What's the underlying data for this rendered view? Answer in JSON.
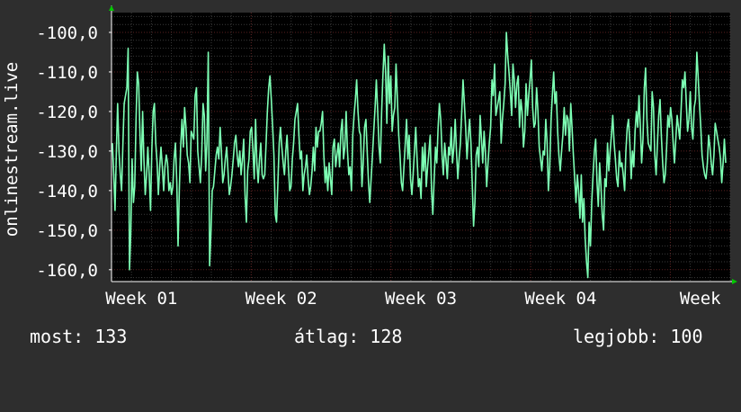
{
  "chart_data": {
    "type": "line",
    "ylabel": "onlinestream.live",
    "xlabel": "",
    "title": "",
    "ylim": [
      -163,
      -95
    ],
    "yticks": [
      -100,
      -110,
      -120,
      -130,
      -140,
      -150,
      -160
    ],
    "ytick_labels": [
      "-100,0",
      "-110,0",
      "-120,0",
      "-130,0",
      "-140,0",
      "-150,0",
      "-160,0"
    ],
    "xticks": [
      {
        "label": "Week 01",
        "x": 1.5
      },
      {
        "label": "Week 02",
        "x": 8.5
      },
      {
        "label": "Week 03",
        "x": 15.5
      },
      {
        "label": "Week 04",
        "x": 22.5
      },
      {
        "label": "Week",
        "x": 29.5
      }
    ],
    "xlim": [
      0,
      31
    ],
    "grid": true,
    "colors": {
      "background": "#2e2e2e",
      "plot": "#000000",
      "line": "#7dffb4",
      "grid_major": "#5a2020",
      "grid_minor": "#3a3a3a",
      "axis": "#ffffff",
      "arrow": "#00c800"
    },
    "series": [
      {
        "values": [
          -128,
          -136,
          -145,
          -130,
          -118,
          -130,
          -136,
          -140,
          -128,
          -118,
          -116,
          -114,
          -104,
          -160,
          -151,
          -132,
          -143,
          -139,
          -122,
          -110,
          -113,
          -126,
          -135,
          -120,
          -132,
          -141,
          -136,
          -129,
          -136,
          -145,
          -130,
          -120,
          -118,
          -128,
          -133,
          -141,
          -134,
          -129,
          -134,
          -140,
          -134,
          -131,
          -133,
          -140,
          -138,
          -141,
          -139,
          -132,
          -128,
          -138,
          -154,
          -139,
          -129,
          -122,
          -129,
          -119,
          -124,
          -131,
          -133,
          -138,
          -125,
          -126,
          -127,
          -116,
          -114,
          -130,
          -134,
          -138,
          -131,
          -118,
          -121,
          -135,
          -128,
          -105,
          -159,
          -151,
          -140,
          -139,
          -135,
          -131,
          -129,
          -132,
          -124,
          -130,
          -138,
          -136,
          -132,
          -129,
          -135,
          -141,
          -139,
          -136,
          -132,
          -128,
          -126,
          -131,
          -134,
          -130,
          -136,
          -132,
          -127,
          -141,
          -148,
          -135,
          -132,
          -125,
          -124,
          -130,
          -137,
          -122,
          -133,
          -138,
          -132,
          -128,
          -136,
          -137,
          -136,
          -128,
          -120,
          -114,
          -111,
          -117,
          -124,
          -131,
          -146,
          -148,
          -138,
          -128,
          -124,
          -129,
          -133,
          -136,
          -130,
          -126,
          -134,
          -140,
          -139,
          -132,
          -128,
          -122,
          -120,
          -118,
          -126,
          -132,
          -130,
          -140,
          -136,
          -134,
          -131,
          -137,
          -141,
          -139,
          -135,
          -129,
          -135,
          -124,
          -129,
          -125,
          -125,
          -123,
          -120,
          -131,
          -138,
          -134,
          -140,
          -133,
          -137,
          -141,
          -129,
          -127,
          -134,
          -131,
          -128,
          -134,
          -125,
          -122,
          -132,
          -129,
          -120,
          -130,
          -136,
          -134,
          -140,
          -126,
          -121,
          -117,
          -112,
          -120,
          -125,
          -126,
          -139,
          -133,
          -124,
          -122,
          -130,
          -138,
          -143,
          -137,
          -131,
          -125,
          -119,
          -112,
          -120,
          -129,
          -133,
          -120,
          -111,
          -103,
          -110,
          -123,
          -106,
          -118,
          -111,
          -125,
          -121,
          -119,
          -108,
          -117,
          -126,
          -131,
          -138,
          -140,
          -134,
          -128,
          -122,
          -132,
          -126,
          -137,
          -141,
          -136,
          -130,
          -124,
          -132,
          -139,
          -137,
          -142,
          -129,
          -135,
          -128,
          -139,
          -134,
          -130,
          -126,
          -140,
          -146,
          -137,
          -129,
          -133,
          -124,
          -118,
          -122,
          -131,
          -136,
          -128,
          -132,
          -137,
          -129,
          -131,
          -124,
          -133,
          -129,
          -122,
          -130,
          -137,
          -132,
          -128,
          -120,
          -112,
          -118,
          -124,
          -132,
          -126,
          -122,
          -128,
          -138,
          -149,
          -143,
          -131,
          -129,
          -134,
          -121,
          -127,
          -133,
          -125,
          -130,
          -139,
          -133,
          -128,
          -124,
          -112,
          -116,
          -108,
          -121,
          -119,
          -117,
          -115,
          -128,
          -122,
          -118,
          -113,
          -100,
          -106,
          -110,
          -115,
          -121,
          -108,
          -112,
          -119,
          -113,
          -111,
          -124,
          -117,
          -120,
          -129,
          -125,
          -113,
          -121,
          -116,
          -112,
          -107,
          -119,
          -124,
          -123,
          -114,
          -120,
          -129,
          -132,
          -135,
          -130,
          -131,
          -122,
          -128,
          -140,
          -134,
          -122,
          -116,
          -110,
          -118,
          -115,
          -125,
          -131,
          -135,
          -130,
          -126,
          -119,
          -126,
          -121,
          -122,
          -130,
          -118,
          -124,
          -131,
          -137,
          -143,
          -136,
          -140,
          -147,
          -136,
          -148,
          -142,
          -152,
          -158,
          -162,
          -148,
          -154,
          -143,
          -136,
          -130,
          -127,
          -138,
          -144,
          -133,
          -139,
          -146,
          -150,
          -137,
          -139,
          -128,
          -135,
          -130,
          -126,
          -121,
          -128,
          -132,
          -137,
          -139,
          -130,
          -134,
          -133,
          -136,
          -140,
          -130,
          -124,
          -122,
          -128,
          -137,
          -130,
          -134,
          -125,
          -120,
          -124,
          -116,
          -124,
          -133,
          -127,
          -114,
          -109,
          -122,
          -128,
          -129,
          -130,
          -115,
          -119,
          -131,
          -136,
          -128,
          -121,
          -117,
          -126,
          -133,
          -138,
          -136,
          -129,
          -121,
          -124,
          -119,
          -122,
          -128,
          -133,
          -127,
          -121,
          -124,
          -127,
          -120,
          -112,
          -114,
          -110,
          -118,
          -125,
          -122,
          -115,
          -124,
          -127,
          -119,
          -117,
          -105,
          -111,
          -118,
          -124,
          -131,
          -134,
          -136,
          -137,
          -133,
          -126,
          -129,
          -133,
          -136,
          -131,
          -123,
          -125,
          -127,
          -129,
          -132,
          -138,
          -133,
          -127,
          -133
        ]
      }
    ]
  },
  "stats": {
    "now": "most: 133",
    "average": "átlag: 128",
    "best": "legjobb: 100"
  }
}
